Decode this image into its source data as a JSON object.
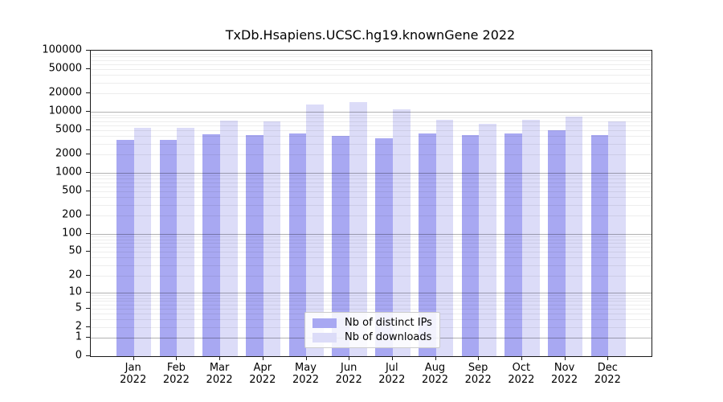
{
  "chart_data": {
    "type": "bar",
    "title": "TxDb.Hsapiens.UCSC.hg19.knownGene 2022",
    "categories": [
      "Jan",
      "Feb",
      "Mar",
      "Apr",
      "May",
      "Jun",
      "Jul",
      "Aug",
      "Sep",
      "Oct",
      "Nov",
      "Dec"
    ],
    "year_label": "2022",
    "series": [
      {
        "name": "Nb of distinct IPs",
        "color": "#a8a8f2",
        "values": [
          3500,
          3500,
          4350,
          4200,
          4400,
          4050,
          3700,
          4400,
          4100,
          4400,
          5000,
          4150
        ]
      },
      {
        "name": "Nb of downloads",
        "color": "#dcdcf8",
        "values": [
          5450,
          5500,
          7200,
          6900,
          13300,
          14500,
          11000,
          7500,
          6400,
          7400,
          8400,
          6900
        ]
      }
    ],
    "y_ticks": [
      100000,
      50000,
      20000,
      10000,
      5000,
      2000,
      1000,
      500,
      200,
      100,
      50,
      20,
      10,
      5,
      2,
      1,
      0
    ],
    "y_scale": "log1p",
    "ylim": [
      0,
      100000
    ],
    "grid": true,
    "legend_position": "bottom-center",
    "colors": {
      "axis": "#1a1a1a",
      "grid_major": "rgba(0,0,0,0.30)",
      "grid_minor": "rgba(0,0,0,0.07)"
    }
  }
}
